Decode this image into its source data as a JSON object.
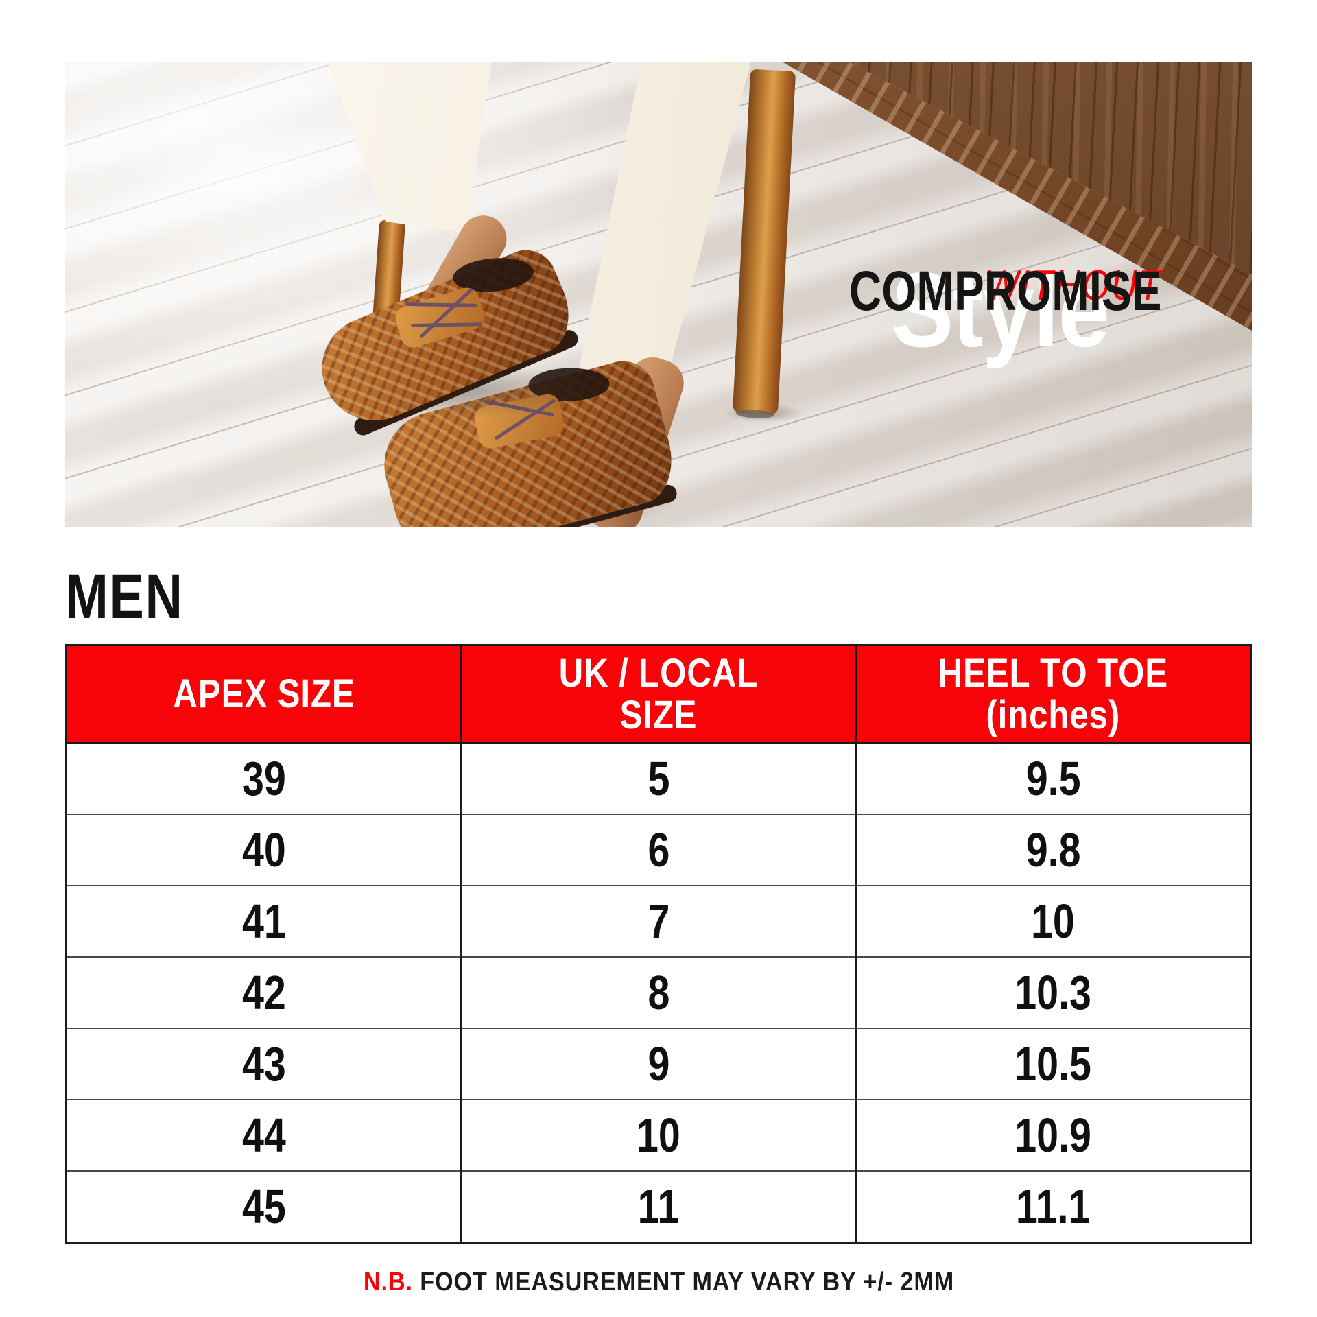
{
  "colors": {
    "accent_red": "#f80408",
    "table_line_dark": "#1c1c1c",
    "table_line_gray": "#4a4a4a",
    "headline_white": "#ffffff",
    "headline_black": "#151515"
  },
  "hero": {
    "headline_top": "Style",
    "headline_mid": "WITHOUT",
    "headline_bottom": "COMPROMISE"
  },
  "section": {
    "title": "MEN"
  },
  "size_table": {
    "columns": [
      {
        "lines": [
          "APEX SIZE"
        ]
      },
      {
        "lines": [
          "UK / LOCAL",
          "SIZE"
        ]
      },
      {
        "lines": [
          "HEEL TO TOE",
          "(inches)"
        ]
      }
    ],
    "rows": [
      [
        "39",
        "5",
        "9.5"
      ],
      [
        "40",
        "6",
        "9.8"
      ],
      [
        "41",
        "7",
        "10"
      ],
      [
        "42",
        "8",
        "10.3"
      ],
      [
        "43",
        "9",
        "10.5"
      ],
      [
        "44",
        "10",
        "10.9"
      ],
      [
        "45",
        "11",
        "11.1"
      ]
    ]
  },
  "footnote": {
    "prefix": "N.B.",
    "text": "FOOT MEASUREMENT MAY VARY BY +/- 2MM"
  },
  "chart_data": {
    "type": "table",
    "title": "MEN",
    "columns": [
      "APEX SIZE",
      "UK / LOCAL SIZE",
      "HEEL TO TOE (inches)"
    ],
    "rows": [
      [
        39,
        5,
        9.5
      ],
      [
        40,
        6,
        9.8
      ],
      [
        41,
        7,
        10
      ],
      [
        42,
        8,
        10.3
      ],
      [
        43,
        9,
        10.5
      ],
      [
        44,
        10,
        10.9
      ],
      [
        45,
        11,
        11.1
      ]
    ],
    "note": "N.B. FOOT MEASUREMENT MAY VARY BY +/- 2MM"
  }
}
